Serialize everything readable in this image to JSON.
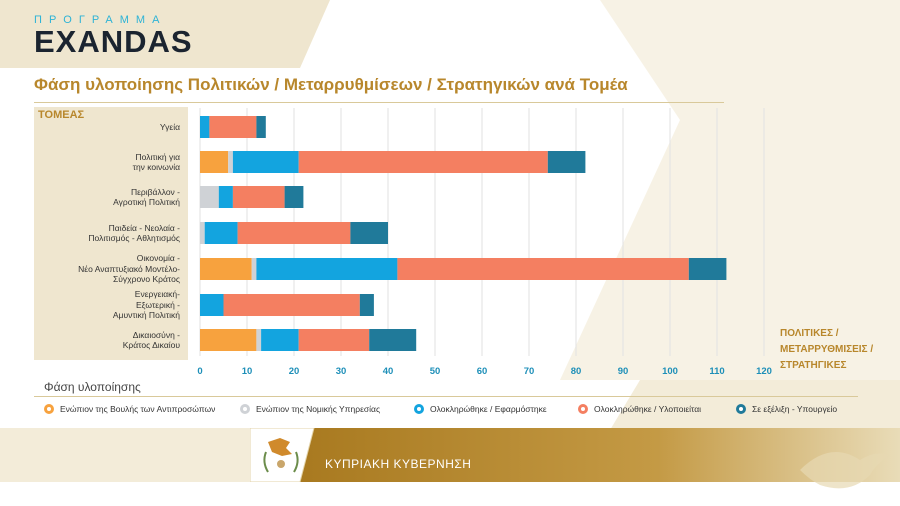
{
  "brand": {
    "top": "ΠΡΟΓΡΑΜΜΑ",
    "main": "EXANDAS"
  },
  "title": "Φάση υλοποίησης Πολιτικών / Μεταρρυθμίσεων / Στρατηγικών ανά Τομέα",
  "sectors_heading": "ΤΟΜΕΑΣ",
  "unit_label": [
    "ΠΟΛΙΤΙΚΕΣ /",
    "ΜΕΤΑΡΡΥΘΜΙΣΕΙΣ /",
    "ΣΤΡΑΤΗΓΙΚΕΣ"
  ],
  "phase_title": "Φάση υλοποίησης",
  "footer": {
    "text": "ΚΥΠΡΙΑΚΗ ΚΥΒΕΡΝΗΣΗ"
  },
  "colors": {
    "gold": "#b8872c",
    "beige": "#efe6cf",
    "footer": "#b8872c"
  },
  "chart_data": {
    "type": "bar",
    "orientation": "horizontal",
    "stacked": true,
    "title": "Φάση υλοποίησης Πολιτικών / Μεταρρυθμίσεων / Στρατηγικών ανά Τομέα",
    "categories": [
      "Υγεία",
      "Πολιτική για την κοινωνία",
      "Περιβάλλον - Αγροτική Πολιτική",
      "Παιδεία - Νεολαία - Πολιτισμός - Αθλητισμός",
      "Οικονομία - Νέο Αναπτυξιακό Μοντέλο- Σύγχρονο Κράτος",
      "Ενεργειακή- Εξωτερική - Αμυντική Πολιτική",
      "Δικαιοσύνη - Κράτος Δικαίου"
    ],
    "category_lines": [
      [
        "Υγεία"
      ],
      [
        "Πολιτική για",
        "την κοινωνία"
      ],
      [
        "Περιβάλλον -",
        "Αγροτική Πολιτική"
      ],
      [
        "Παιδεία - Νεολαία -",
        "Πολιτισμός - Αθλητισμός"
      ],
      [
        "Οικονομία -",
        "Νέο Αναπτυξιακό Μοντέλο-",
        "Σύγχρονο Κράτος"
      ],
      [
        "Ενεργειακή-",
        "Εξωτερική -",
        "Αμυντική Πολιτική"
      ],
      [
        "Δικαιοσύνη -",
        "Κράτος Δικαίου"
      ]
    ],
    "series": [
      {
        "name": "Ενώπιον της Βουλής των Αντιπροσώπων",
        "color": "#f7a23e",
        "values": [
          0,
          6,
          0,
          0,
          11,
          0,
          12
        ]
      },
      {
        "name": "Ενώπιον της Νομικής Υπηρεσίας",
        "color": "#cfd2d6",
        "values": [
          0,
          1,
          4,
          1,
          1,
          0,
          1
        ]
      },
      {
        "name": "Ολοκληρώθηκε / Εφαρμόστηκε",
        "color": "#13a4df",
        "values": [
          2,
          14,
          3,
          7,
          30,
          5,
          8
        ]
      },
      {
        "name": "Ολοκληρώθηκε / Υλοποιείται",
        "color": "#f47f61",
        "values": [
          10,
          53,
          11,
          24,
          62,
          29,
          15
        ]
      },
      {
        "name": "Σε εξέλιξη - Υπουργείο",
        "color": "#207a9a",
        "values": [
          2,
          8,
          4,
          8,
          8,
          3,
          10
        ]
      }
    ],
    "xlim": [
      0,
      120
    ],
    "xticks": [
      0,
      10,
      20,
      30,
      40,
      50,
      60,
      70,
      80,
      90,
      100,
      110,
      120
    ],
    "grid": true,
    "legend_position": "bottom"
  }
}
